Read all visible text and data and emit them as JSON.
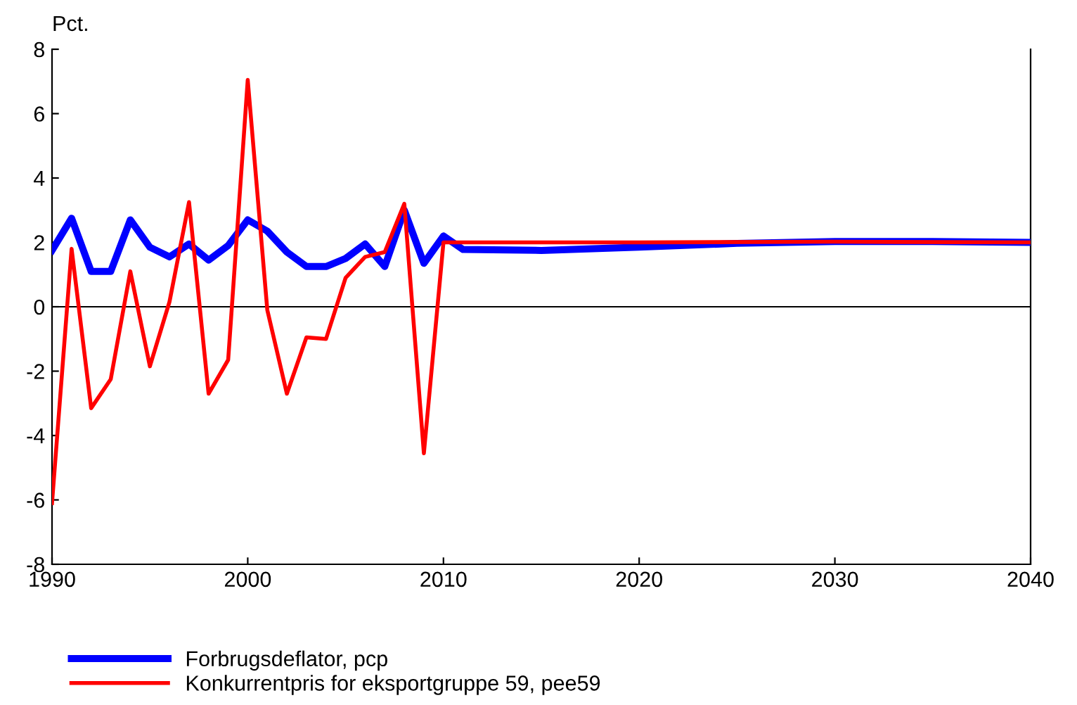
{
  "chart_data": {
    "type": "line",
    "ylabel": "Pct.",
    "xlim": [
      1990,
      2040
    ],
    "xticks": [
      1990,
      2000,
      2010,
      2020,
      2030,
      2040
    ],
    "ylim": [
      -8,
      8
    ],
    "yticks": [
      -8,
      -6,
      -4,
      -2,
      0,
      2,
      4,
      6,
      8
    ],
    "grid": false,
    "legend": "bottom left",
    "marker": "none",
    "line_style": "solid",
    "ref_lines": [
      {
        "axis": "y",
        "value": 0,
        "color": "#000000"
      }
    ],
    "series": [
      {
        "name": "Forbrugsdeflator, pcp",
        "color": "#0000ff",
        "x": [
          1990,
          1991,
          1992,
          1993,
          1994,
          1995,
          1996,
          1997,
          1998,
          1999,
          2000,
          2001,
          2002,
          2003,
          2004,
          2005,
          2006,
          2007,
          2008,
          2009,
          2010,
          2011,
          2015,
          2020,
          2025,
          2030,
          2035,
          2040
        ],
        "values": [
          1.75,
          2.75,
          1.1,
          1.1,
          2.7,
          1.85,
          1.55,
          1.95,
          1.45,
          1.9,
          2.7,
          2.35,
          1.7,
          1.25,
          1.25,
          1.5,
          1.95,
          1.25,
          3.0,
          1.35,
          2.2,
          1.78,
          1.75,
          1.85,
          1.97,
          2.03,
          2.03,
          2.0
        ]
      },
      {
        "name": "Konkurrentpris for eksportgruppe 59, pee59",
        "color": "#ff0000",
        "x": [
          1990,
          1991,
          1992,
          1993,
          1994,
          1995,
          1996,
          1997,
          1998,
          1999,
          2000,
          2001,
          2002,
          2003,
          2004,
          2005,
          2006,
          2007,
          2008,
          2009,
          2010,
          2020,
          2030,
          2040
        ],
        "values": [
          -6.1,
          1.8,
          -3.15,
          -2.25,
          1.1,
          -1.85,
          0.15,
          3.25,
          -2.7,
          -1.65,
          7.05,
          -0.1,
          -2.7,
          -0.95,
          -1.0,
          0.9,
          1.55,
          1.7,
          3.2,
          -4.55,
          2.0,
          2.0,
          2.02,
          2.0
        ]
      }
    ]
  }
}
